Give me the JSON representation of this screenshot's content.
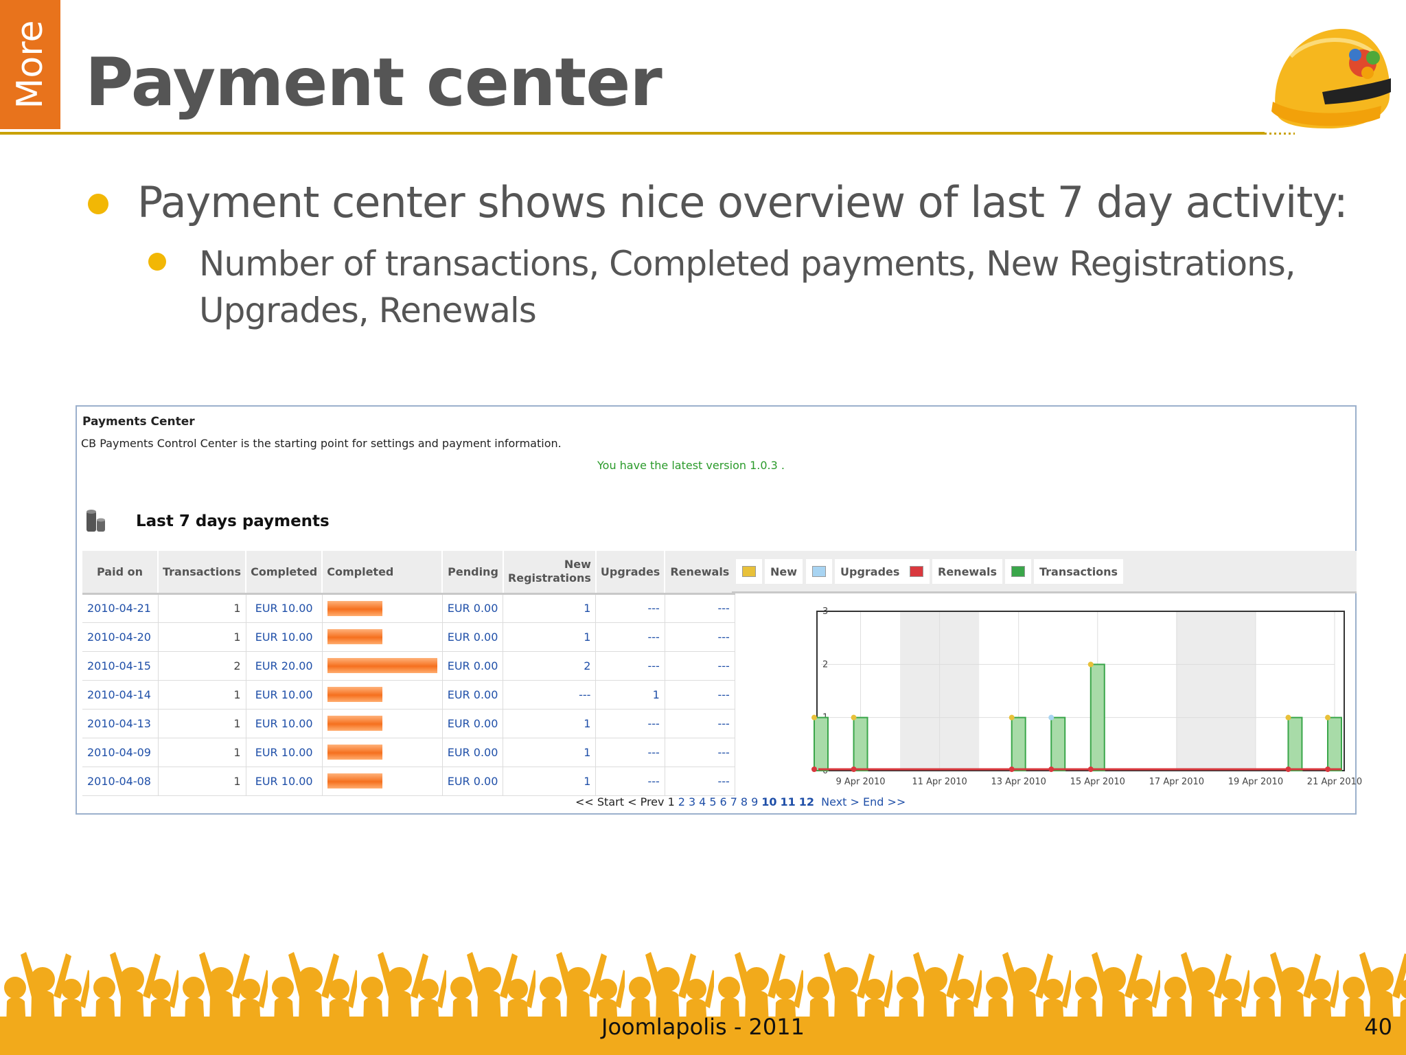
{
  "slide": {
    "side_tab": "More",
    "title": "Payment center",
    "bullet1": "Payment center shows nice overview of last 7 day activity:",
    "bullet2": "Number of transactions, Completed payments, New Registrations, Upgrades, Renewals",
    "footer": "Joomlapolis - 2011",
    "page_number": "40"
  },
  "panel": {
    "title": "Payments Center",
    "description": "CB Payments Control Center is the starting point for settings and payment information.",
    "version_notice": "You have the latest version 1.0.3 .",
    "section_title": "Last 7 days payments"
  },
  "table": {
    "headers": {
      "paid_on": "Paid on",
      "transactions": "Transactions",
      "completed": "Completed",
      "completed_bar": "Completed",
      "pending": "Pending",
      "new_reg_1": "New",
      "new_reg_2": "Registrations",
      "upgrades": "Upgrades",
      "renewals": "Renewals"
    },
    "rows": [
      {
        "date": "2010-04-21",
        "transactions": "1",
        "completed": "EUR 10.00",
        "completed_fraction": 0.5,
        "pending": "EUR 0.00",
        "new_registrations": "1",
        "upgrades": "---",
        "renewals": "---"
      },
      {
        "date": "2010-04-20",
        "transactions": "1",
        "completed": "EUR 10.00",
        "completed_fraction": 0.5,
        "pending": "EUR 0.00",
        "new_registrations": "1",
        "upgrades": "---",
        "renewals": "---"
      },
      {
        "date": "2010-04-15",
        "transactions": "2",
        "completed": "EUR 20.00",
        "completed_fraction": 1.0,
        "pending": "EUR 0.00",
        "new_registrations": "2",
        "upgrades": "---",
        "renewals": "---"
      },
      {
        "date": "2010-04-14",
        "transactions": "1",
        "completed": "EUR 10.00",
        "completed_fraction": 0.5,
        "pending": "EUR 0.00",
        "new_registrations": "---",
        "upgrades": "1",
        "renewals": "---"
      },
      {
        "date": "2010-04-13",
        "transactions": "1",
        "completed": "EUR 10.00",
        "completed_fraction": 0.5,
        "pending": "EUR 0.00",
        "new_registrations": "1",
        "upgrades": "---",
        "renewals": "---"
      },
      {
        "date": "2010-04-09",
        "transactions": "1",
        "completed": "EUR 10.00",
        "completed_fraction": 0.5,
        "pending": "EUR 0.00",
        "new_registrations": "1",
        "upgrades": "---",
        "renewals": "---"
      },
      {
        "date": "2010-04-08",
        "transactions": "1",
        "completed": "EUR 10.00",
        "completed_fraction": 0.5,
        "pending": "EUR 0.00",
        "new_registrations": "1",
        "upgrades": "---",
        "renewals": "---"
      }
    ]
  },
  "legend": [
    {
      "label": "New",
      "color": "#e8c13a"
    },
    {
      "label": "Upgrades",
      "color": "#a8d4f2"
    },
    {
      "label": "Renewals",
      "color": "#d9383e"
    },
    {
      "label": "Transactions",
      "color": "#3aa64a"
    }
  ],
  "chart_data": {
    "type": "bar",
    "x": [
      "2010-04-08",
      "2010-04-09",
      "2010-04-10",
      "2010-04-11",
      "2010-04-12",
      "2010-04-13",
      "2010-04-14",
      "2010-04-15",
      "2010-04-16",
      "2010-04-17",
      "2010-04-18",
      "2010-04-19",
      "2010-04-20",
      "2010-04-21"
    ],
    "tick_labels": [
      "9 Apr 2010",
      "11 Apr 2010",
      "13 Apr 2010",
      "15 Apr 2010",
      "17 Apr 2010",
      "19 Apr 2010",
      "21 Apr 2010"
    ],
    "y_ticks": [
      "0",
      "1",
      "2",
      "3"
    ],
    "ylim": [
      0,
      3
    ],
    "series": [
      {
        "name": "Transactions",
        "values": [
          1,
          1,
          0,
          0,
          0,
          1,
          1,
          2,
          0,
          0,
          0,
          0,
          1,
          1
        ]
      },
      {
        "name": "New",
        "values": [
          1,
          1,
          0,
          0,
          0,
          1,
          0,
          2,
          0,
          0,
          0,
          0,
          1,
          1
        ]
      },
      {
        "name": "Upgrades",
        "values": [
          0,
          0,
          0,
          0,
          0,
          0,
          1,
          0,
          0,
          0,
          0,
          0,
          0,
          0
        ]
      },
      {
        "name": "Renewals",
        "values": [
          0,
          0,
          0,
          0,
          0,
          0,
          0,
          0,
          0,
          0,
          0,
          0,
          0,
          0
        ]
      }
    ],
    "grid": true
  },
  "pager": {
    "start": "<< Start",
    "prev": "< Prev",
    "pages": [
      "1",
      "2",
      "3",
      "4",
      "5",
      "6",
      "7",
      "8",
      "9",
      "10",
      "11",
      "12"
    ],
    "next": "Next >",
    "end": "End >>"
  }
}
